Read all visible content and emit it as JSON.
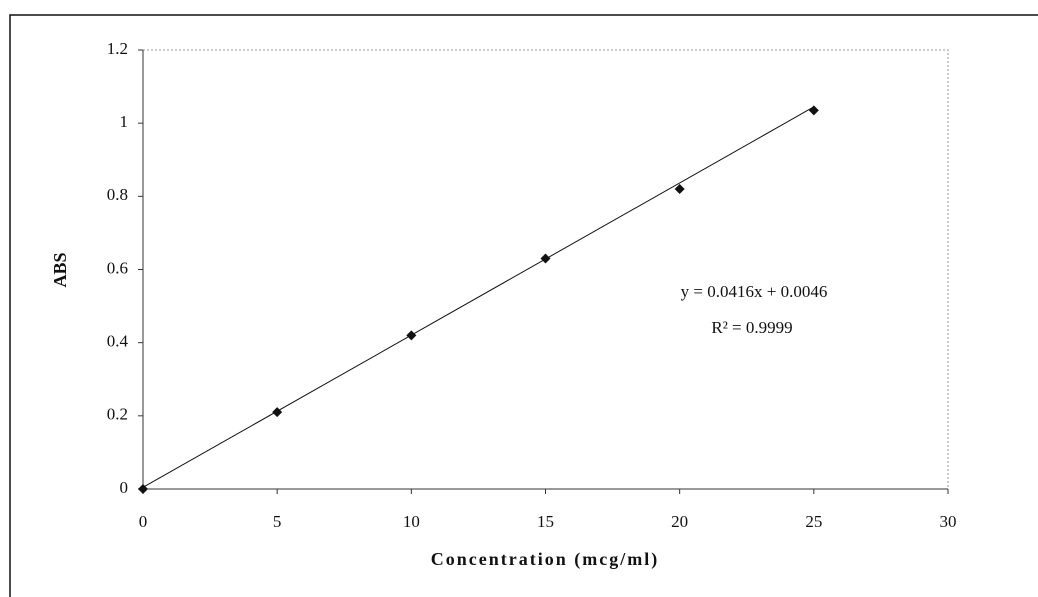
{
  "chart_data": {
    "type": "scatter",
    "x_label": "Concentration (mcg/ml)",
    "y_label": "ABS",
    "series": [
      {
        "name": "ABS",
        "color": "#111111",
        "x": [
          0,
          5,
          10,
          15,
          20,
          25
        ],
        "values": [
          0,
          0.21,
          0.42,
          0.63,
          0.82,
          1.035
        ]
      }
    ],
    "trendline": {
      "slope": 0.0416,
      "intercept": 0.0046,
      "color": "#111111"
    },
    "equation": "y = 0.0416x + 0.0046",
    "r_squared": "R² = 0.9999",
    "xlim": [
      0,
      30
    ],
    "xticks": [
      0,
      5,
      10,
      15,
      20,
      25,
      30
    ],
    "ylim": [
      0,
      1.2
    ],
    "yticks": [
      0,
      0.2,
      0.4,
      0.6,
      0.8,
      1,
      1.2
    ],
    "grid": false
  }
}
